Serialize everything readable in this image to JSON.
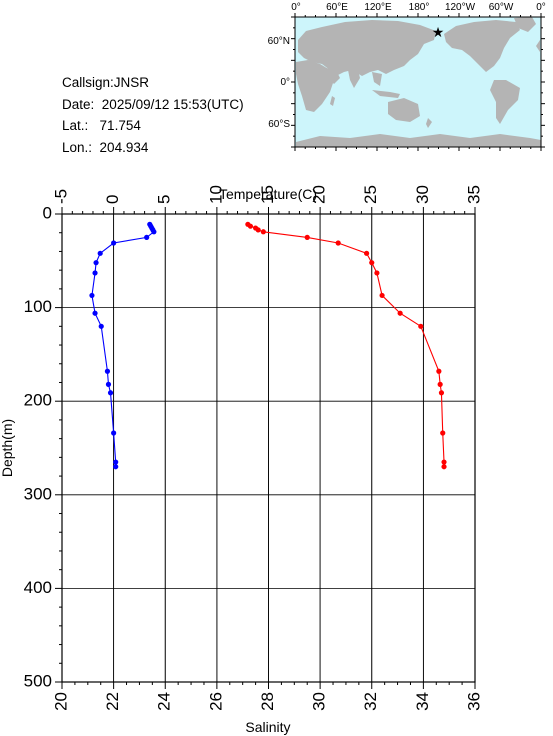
{
  "station": {
    "callsign_label": "Callsign:",
    "callsign": "JNSR",
    "date_label": "Date:",
    "date": "2025/09/12 15:53(UTC)",
    "lat_label": "Lat.:",
    "lat": "71.754",
    "lon_label": "Lon.:",
    "lon": "204.934"
  },
  "map": {
    "top_labels": [
      "0°",
      "60°E",
      "120°E",
      "180°",
      "120°W",
      "60°W",
      "0°"
    ],
    "left_labels": [
      "60°N",
      "0°",
      "60°S"
    ],
    "ocean_color": "#cdf5fb",
    "land_color": "#b4b4b4",
    "marker_color": "#ff0000",
    "marker": "star-icon"
  },
  "chart_data": {
    "type": "line",
    "title": "",
    "x_top_label": "Temperature(C)",
    "x_bottom_label": "Salinity",
    "ylabel": "Depth(m)",
    "temperature_axis": {
      "range": [
        -5,
        35
      ],
      "ticks": [
        "-5",
        "0",
        "5",
        "10",
        "15",
        "20",
        "25",
        "30",
        "35"
      ]
    },
    "salinity_axis": {
      "range": [
        20,
        36
      ],
      "ticks": [
        "20",
        "22",
        "24",
        "26",
        "28",
        "30",
        "32",
        "34",
        "36"
      ]
    },
    "depth_axis": {
      "range": [
        0,
        500
      ],
      "ticks": [
        "0",
        "100",
        "200",
        "300",
        "400",
        "500"
      ],
      "inverted": true
    },
    "grid": true,
    "series": [
      {
        "key": "temperature",
        "color": "#0000ff",
        "axis": "top",
        "points": [
          [
            3.5,
            11
          ],
          [
            3.6,
            13
          ],
          [
            3.7,
            15
          ],
          [
            3.8,
            17
          ],
          [
            3.9,
            19
          ],
          [
            3.2,
            25
          ],
          [
            0,
            31
          ],
          [
            -1.3,
            42
          ],
          [
            -1.7,
            52
          ],
          [
            -1.8,
            63
          ],
          [
            -2.1,
            87
          ],
          [
            -1.8,
            106
          ],
          [
            -1.2,
            120
          ],
          [
            -0.6,
            168
          ],
          [
            -0.5,
            182
          ],
          [
            -0.3,
            191
          ],
          [
            0,
            234
          ],
          [
            0.2,
            265
          ],
          [
            0.2,
            270
          ]
        ]
      },
      {
        "key": "salinity",
        "color": "#ff0000",
        "axis": "bottom",
        "points": [
          [
            27.2,
            11
          ],
          [
            27.3,
            13
          ],
          [
            27.5,
            15
          ],
          [
            27.6,
            17
          ],
          [
            27.8,
            19
          ],
          [
            29.5,
            25
          ],
          [
            30.7,
            31
          ],
          [
            31.8,
            42
          ],
          [
            32.0,
            52
          ],
          [
            32.2,
            63
          ],
          [
            32.4,
            87
          ],
          [
            33.1,
            106
          ],
          [
            33.9,
            120
          ],
          [
            34.6,
            168
          ],
          [
            34.65,
            182
          ],
          [
            34.7,
            191
          ],
          [
            34.75,
            234
          ],
          [
            34.8,
            265
          ],
          [
            34.8,
            270
          ]
        ]
      }
    ]
  }
}
